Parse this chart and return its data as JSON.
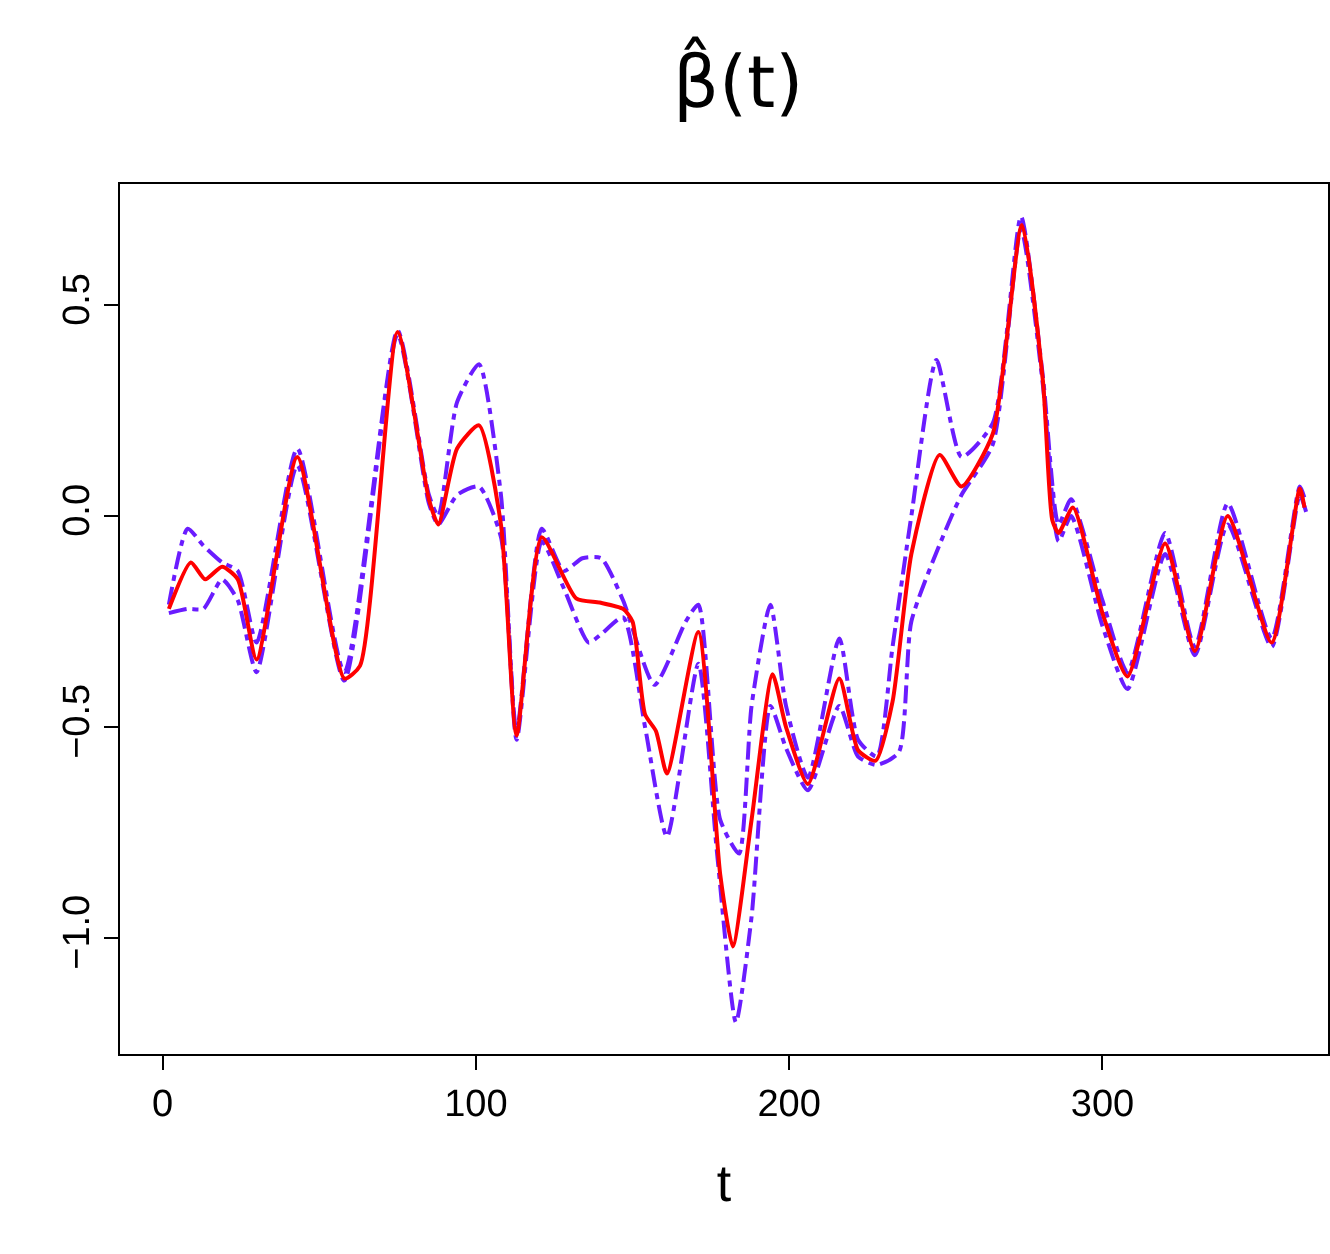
{
  "chart_data": {
    "type": "line",
    "title": "β̂(t)",
    "xlabel": "t",
    "xlim": [
      -13.6,
      372
    ],
    "ylim": [
      -1.275,
      0.787
    ],
    "xticks": [
      0,
      100,
      200,
      300
    ],
    "yticks": [
      {
        "value": -1.0,
        "label": "−1.0"
      },
      {
        "value": -0.5,
        "label": "−0.5"
      },
      {
        "value": 0.0,
        "label": "0.0"
      },
      {
        "value": 0.5,
        "label": "0.5"
      }
    ],
    "marker": "none",
    "series": [
      {
        "color": "#6a1cff",
        "line_style": "dashdot",
        "x": [
          2,
          8,
          13,
          19,
          24,
          30,
          43,
          58,
          75,
          85,
          88,
          94,
          101,
          108,
          113,
          121,
          128,
          134,
          140,
          147,
          157,
          167,
          171,
          178,
          184,
          188,
          194,
          199,
          206,
          216,
          222,
          228,
          233,
          239,
          247,
          255,
          265,
          274,
          281,
          286,
          290,
          300,
          308,
          320,
          329.5,
          340,
          354,
          363,
          365
        ],
        "values": [
          -0.21,
          -0.03,
          -0.07,
          -0.11,
          -0.13,
          -0.3,
          0.16,
          -0.37,
          0.44,
          0.05,
          0.0,
          0.27,
          0.36,
          0.05,
          -0.51,
          -0.03,
          -0.13,
          -0.1,
          -0.1,
          -0.2,
          -0.4,
          -0.25,
          -0.21,
          -0.72,
          -0.8,
          -0.45,
          -0.21,
          -0.45,
          -0.62,
          -0.29,
          -0.53,
          -0.57,
          -0.31,
          0.0,
          0.37,
          0.14,
          0.22,
          0.71,
          0.33,
          -0.02,
          0.04,
          -0.2,
          -0.37,
          -0.04,
          -0.31,
          0.03,
          -0.29,
          0.07,
          0.03
        ]
      },
      {
        "color": "#6a1cff",
        "line_style": "dashdot",
        "x": [
          2,
          8,
          13,
          19,
          24,
          30,
          43,
          58,
          75,
          85,
          88,
          94,
          101,
          108,
          113,
          121,
          128,
          136,
          140,
          147,
          154,
          161,
          171,
          177,
          183,
          188,
          194,
          199,
          206,
          216,
          222,
          228,
          235,
          239,
          249,
          255,
          265,
          274,
          281,
          286,
          290,
          300,
          308,
          320,
          329.5,
          340,
          354,
          363,
          365
        ],
        "values": [
          -0.23,
          -0.22,
          -0.22,
          -0.15,
          -0.2,
          -0.37,
          0.12,
          -0.39,
          0.43,
          0.03,
          -0.02,
          0.05,
          0.07,
          -0.05,
          -0.53,
          -0.06,
          -0.17,
          -0.3,
          -0.28,
          -0.24,
          -0.5,
          -0.76,
          -0.35,
          -0.8,
          -1.2,
          -0.95,
          -0.45,
          -0.55,
          -0.65,
          -0.45,
          -0.57,
          -0.59,
          -0.56,
          -0.25,
          -0.05,
          0.05,
          0.17,
          0.68,
          0.31,
          -0.06,
          0.0,
          -0.26,
          -0.41,
          -0.09,
          -0.33,
          -0.02,
          -0.31,
          0.05,
          0.01
        ]
      },
      {
        "color": "#ff0000",
        "line_style": "solid",
        "x": [
          2,
          9,
          13.6,
          19,
          24,
          30,
          43,
          58,
          63,
          75,
          85,
          88,
          94,
          101,
          108,
          113,
          121,
          132,
          139.5,
          147,
          150,
          154,
          157.5,
          161,
          171,
          178,
          182,
          188,
          194.7,
          199,
          206,
          216,
          222,
          227.6,
          233,
          239,
          248,
          255,
          265,
          274.3,
          281,
          284,
          286,
          290.6,
          300,
          308,
          320,
          329.5,
          340,
          354,
          363,
          364.5
        ],
        "values": [
          -0.22,
          -0.11,
          -0.15,
          -0.12,
          -0.15,
          -0.34,
          0.14,
          -0.385,
          -0.355,
          0.436,
          0.04,
          -0.02,
          0.16,
          0.215,
          -0.02,
          -0.52,
          -0.05,
          -0.195,
          -0.205,
          -0.22,
          -0.25,
          -0.47,
          -0.51,
          -0.61,
          -0.275,
          -0.85,
          -1.02,
          -0.72,
          -0.375,
          -0.5,
          -0.635,
          -0.385,
          -0.555,
          -0.58,
          -0.44,
          -0.09,
          0.145,
          0.07,
          0.195,
          0.69,
          0.32,
          -0.01,
          -0.04,
          0.02,
          -0.23,
          -0.38,
          -0.065,
          -0.32,
          0.0,
          -0.3,
          0.065,
          0.02
        ]
      }
    ]
  }
}
